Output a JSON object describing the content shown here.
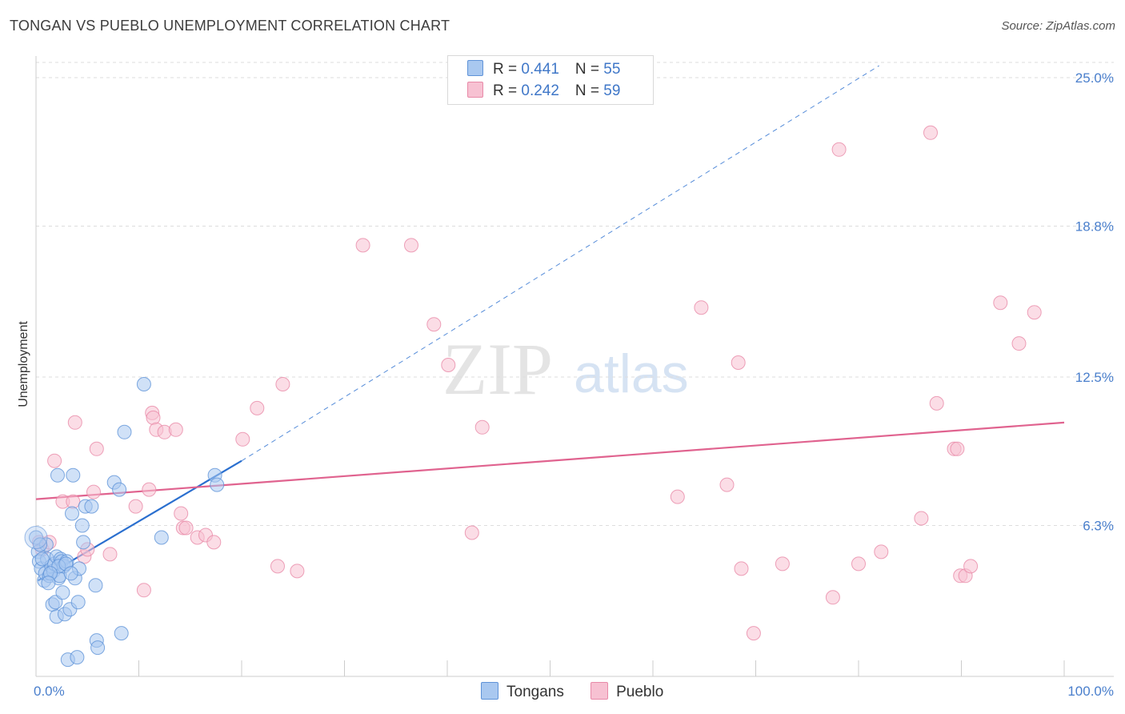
{
  "header": {
    "title": "TONGAN VS PUEBLO UNEMPLOYMENT CORRELATION CHART",
    "source": "Source: ZipAtlas.com"
  },
  "colors": {
    "tongans_fill": "#a9c8f0",
    "tongans_stroke": "#5f93d8",
    "tongans_line": "#2a6fcf",
    "pueblo_fill": "#f7c1d2",
    "pueblo_stroke": "#e88aa8",
    "pueblo_line": "#e0638f",
    "grid": "#dddddd",
    "axis_label": "#4a7fcc"
  },
  "legend": {
    "tongans": {
      "r_label": "R = ",
      "r_value": "0.441",
      "n_label": "N = ",
      "n_value": "55"
    },
    "pueblo": {
      "r_label": "R = ",
      "r_value": "0.242",
      "n_label": "N = ",
      "n_value": "59"
    }
  },
  "bottom_legend": {
    "tongans": "Tongans",
    "pueblo": "Pueblo"
  },
  "watermark": {
    "zip": "ZIP",
    "atlas": "atlas"
  },
  "chart_data": {
    "type": "scatter",
    "title": "TONGAN VS PUEBLO UNEMPLOYMENT CORRELATION CHART",
    "xlabel": "",
    "ylabel": "Unemployment",
    "xlim": [
      0,
      100
    ],
    "ylim": [
      0,
      26.1
    ],
    "x_tick_labels": {
      "min": "0.0%",
      "max": "100.0%"
    },
    "y_ticks": [
      {
        "value": 6.3,
        "label": "6.3%"
      },
      {
        "value": 12.5,
        "label": "12.5%"
      },
      {
        "value": 18.8,
        "label": "18.8%"
      },
      {
        "value": 25.0,
        "label": "25.0%"
      }
    ],
    "grid": true,
    "legend_position": "top-center",
    "series": [
      {
        "name": "Tongans",
        "r": 0.441,
        "n": 55,
        "trend": {
          "x0": 0.2,
          "y0": 4.0,
          "x1": 20.0,
          "y1": 9.0,
          "dashed_to_x": 82.0,
          "dashed_to_y": 25.5
        },
        "points": [
          [
            0.0,
            5.8
          ],
          [
            0.2,
            5.2
          ],
          [
            0.3,
            4.8
          ],
          [
            0.5,
            4.5
          ],
          [
            0.8,
            4.0
          ],
          [
            0.9,
            4.3
          ],
          [
            1.0,
            5.5
          ],
          [
            1.1,
            4.9
          ],
          [
            1.3,
            4.2
          ],
          [
            1.5,
            4.6
          ],
          [
            1.6,
            3.0
          ],
          [
            1.7,
            4.4
          ],
          [
            1.8,
            4.7
          ],
          [
            1.9,
            3.1
          ],
          [
            2.0,
            2.5
          ],
          [
            2.0,
            5.0
          ],
          [
            2.1,
            8.4
          ],
          [
            2.2,
            4.1
          ],
          [
            2.3,
            4.2
          ],
          [
            2.4,
            4.9
          ],
          [
            2.5,
            4.8
          ],
          [
            2.6,
            3.5
          ],
          [
            2.7,
            4.6
          ],
          [
            2.8,
            2.6
          ],
          [
            3.0,
            4.8
          ],
          [
            3.1,
            0.7
          ],
          [
            3.3,
            2.8
          ],
          [
            3.5,
            6.8
          ],
          [
            3.6,
            8.4
          ],
          [
            3.8,
            4.1
          ],
          [
            4.0,
            0.8
          ],
          [
            4.1,
            3.1
          ],
          [
            4.2,
            4.5
          ],
          [
            4.5,
            6.3
          ],
          [
            4.6,
            5.6
          ],
          [
            4.8,
            7.1
          ],
          [
            5.4,
            7.1
          ],
          [
            5.8,
            3.8
          ],
          [
            5.9,
            1.5
          ],
          [
            6.0,
            1.2
          ],
          [
            7.6,
            8.1
          ],
          [
            8.1,
            7.8
          ],
          [
            8.3,
            1.8
          ],
          [
            8.6,
            10.2
          ],
          [
            12.2,
            5.8
          ],
          [
            10.5,
            12.2
          ],
          [
            17.4,
            8.4
          ],
          [
            17.6,
            8.0
          ],
          [
            2.2,
            4.6
          ],
          [
            2.9,
            4.7
          ],
          [
            1.4,
            4.3
          ],
          [
            0.6,
            4.9
          ],
          [
            3.4,
            4.3
          ],
          [
            1.2,
            3.9
          ],
          [
            0.4,
            5.5
          ]
        ]
      },
      {
        "name": "Pueblo",
        "r": 0.242,
        "n": 59,
        "trend": {
          "x0": 0.0,
          "y0": 7.4,
          "x1": 100.0,
          "y1": 10.6
        },
        "points": [
          [
            0.3,
            5.6
          ],
          [
            0.6,
            5.3
          ],
          [
            1.3,
            5.6
          ],
          [
            1.8,
            9.0
          ],
          [
            2.6,
            7.3
          ],
          [
            3.8,
            10.6
          ],
          [
            3.6,
            7.3
          ],
          [
            4.7,
            5.0
          ],
          [
            5.0,
            5.3
          ],
          [
            5.6,
            7.7
          ],
          [
            5.9,
            9.5
          ],
          [
            7.2,
            5.1
          ],
          [
            9.7,
            7.1
          ],
          [
            10.5,
            3.6
          ],
          [
            11.0,
            7.8
          ],
          [
            11.3,
            11.0
          ],
          [
            11.4,
            10.8
          ],
          [
            11.7,
            10.3
          ],
          [
            12.5,
            10.2
          ],
          [
            14.1,
            6.8
          ],
          [
            14.3,
            6.2
          ],
          [
            14.6,
            6.2
          ],
          [
            15.7,
            5.8
          ],
          [
            16.5,
            5.9
          ],
          [
            17.3,
            5.6
          ],
          [
            20.1,
            9.9
          ],
          [
            21.5,
            11.2
          ],
          [
            23.5,
            4.6
          ],
          [
            24.0,
            12.2
          ],
          [
            25.4,
            4.4
          ],
          [
            31.8,
            18.0
          ],
          [
            36.5,
            18.0
          ],
          [
            38.7,
            14.7
          ],
          [
            43.4,
            10.4
          ],
          [
            42.4,
            6.0
          ],
          [
            62.4,
            7.5
          ],
          [
            64.7,
            15.4
          ],
          [
            67.2,
            8.0
          ],
          [
            68.3,
            13.1
          ],
          [
            68.6,
            4.5
          ],
          [
            69.8,
            1.8
          ],
          [
            72.6,
            4.7
          ],
          [
            77.5,
            3.3
          ],
          [
            78.1,
            22.0
          ],
          [
            80.0,
            4.7
          ],
          [
            82.2,
            5.2
          ],
          [
            86.1,
            6.6
          ],
          [
            87.0,
            22.7
          ],
          [
            87.6,
            11.4
          ],
          [
            89.3,
            9.5
          ],
          [
            89.6,
            9.5
          ],
          [
            89.9,
            4.2
          ],
          [
            90.4,
            4.2
          ],
          [
            90.9,
            4.6
          ],
          [
            93.8,
            15.6
          ],
          [
            95.6,
            13.9
          ],
          [
            97.1,
            15.2
          ],
          [
            13.6,
            10.3
          ],
          [
            40.1,
            13.0
          ]
        ]
      }
    ]
  }
}
